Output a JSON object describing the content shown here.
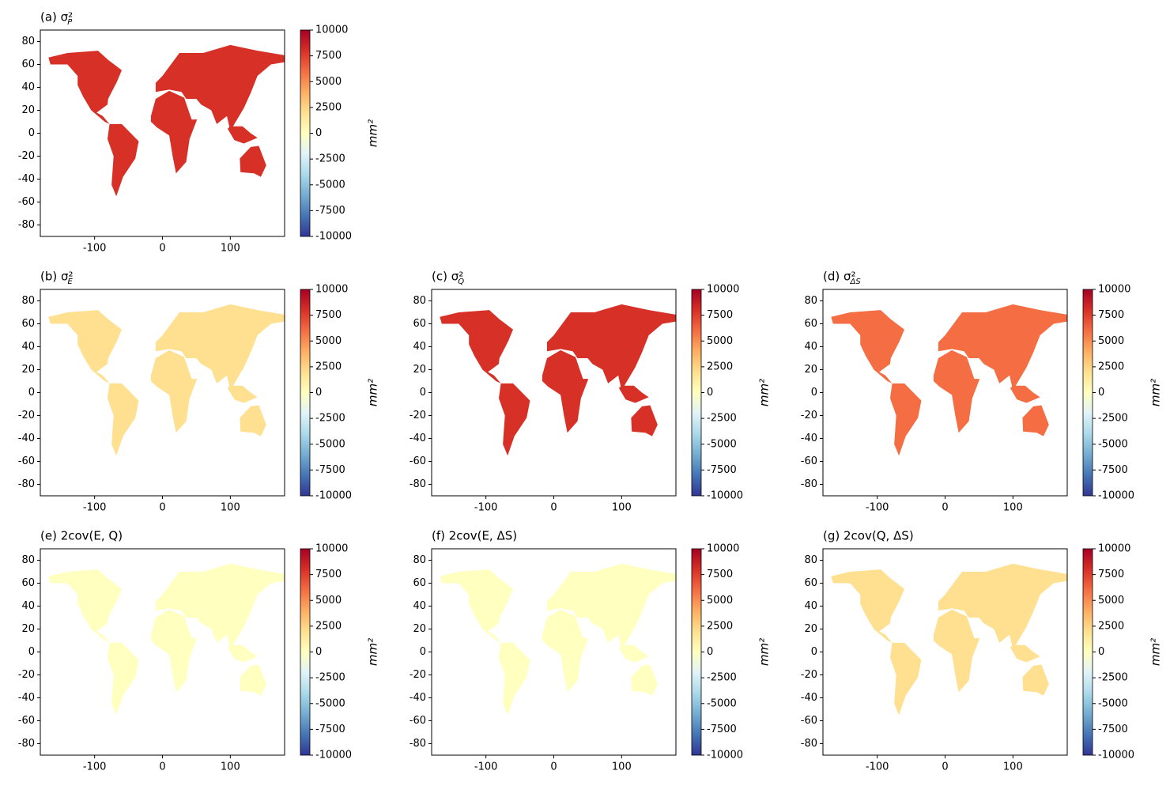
{
  "chart_data": [
    {
      "type": "heatmap",
      "title": "(a) σ²",
      "title_sub": "P",
      "xlim": [
        -180,
        180
      ],
      "xticks": [
        -100,
        0,
        100
      ],
      "ylim": [
        -90,
        90
      ],
      "yticks": [
        -80,
        -60,
        -40,
        -20,
        0,
        20,
        40,
        60,
        80
      ],
      "clim": [
        -10000,
        10000
      ],
      "cticks": [
        -10000,
        -7500,
        -5000,
        -2500,
        0,
        2500,
        5000,
        7500,
        10000
      ],
      "colorbar_label": "mm²",
      "colormap": [
        "#313695",
        "#4575b4",
        "#74add1",
        "#abd9e9",
        "#e0f3f8",
        "#ffffbf",
        "#fee090",
        "#fdae61",
        "#f46d43",
        "#d73027",
        "#a50026"
      ]
    },
    {
      "type": "heatmap",
      "title": "(b) σ²",
      "title_sub": "E",
      "xlim": [
        -180,
        180
      ],
      "xticks": [
        -100,
        0,
        100
      ],
      "ylim": [
        -90,
        90
      ],
      "yticks": [
        -80,
        -60,
        -40,
        -20,
        0,
        20,
        40,
        60,
        80
      ],
      "clim": [
        -10000,
        10000
      ],
      "cticks": [
        -10000,
        -7500,
        -5000,
        -2500,
        0,
        2500,
        5000,
        7500,
        10000
      ],
      "colorbar_label": "mm²",
      "colormap": [
        "#313695",
        "#4575b4",
        "#74add1",
        "#abd9e9",
        "#e0f3f8",
        "#ffffbf",
        "#fee090",
        "#fdae61",
        "#f46d43",
        "#d73027",
        "#a50026"
      ]
    },
    {
      "type": "heatmap",
      "title": "(c) σ²",
      "title_sub": "Q",
      "xlim": [
        -180,
        180
      ],
      "xticks": [
        -100,
        0,
        100
      ],
      "ylim": [
        -90,
        90
      ],
      "yticks": [
        -80,
        -60,
        -40,
        -20,
        0,
        20,
        40,
        60,
        80
      ],
      "clim": [
        -10000,
        10000
      ],
      "cticks": [
        -10000,
        -7500,
        -5000,
        -2500,
        0,
        2500,
        5000,
        7500,
        10000
      ],
      "colorbar_label": "mm²",
      "colormap": [
        "#313695",
        "#4575b4",
        "#74add1",
        "#abd9e9",
        "#e0f3f8",
        "#ffffbf",
        "#fee090",
        "#fdae61",
        "#f46d43",
        "#d73027",
        "#a50026"
      ]
    },
    {
      "type": "heatmap",
      "title": "(d) σ²",
      "title_sub": "ΔS",
      "xlim": [
        -180,
        180
      ],
      "xticks": [
        -100,
        0,
        100
      ],
      "ylim": [
        -90,
        90
      ],
      "yticks": [
        -80,
        -60,
        -40,
        -20,
        0,
        20,
        40,
        60,
        80
      ],
      "clim": [
        -10000,
        10000
      ],
      "cticks": [
        -10000,
        -7500,
        -5000,
        -2500,
        0,
        2500,
        5000,
        7500,
        10000
      ],
      "colorbar_label": "mm²",
      "colormap": [
        "#313695",
        "#4575b4",
        "#74add1",
        "#abd9e9",
        "#e0f3f8",
        "#ffffbf",
        "#fee090",
        "#fdae61",
        "#f46d43",
        "#d73027",
        "#a50026"
      ]
    },
    {
      "type": "heatmap",
      "title": "(e) 2cov(E, Q)",
      "xlim": [
        -180,
        180
      ],
      "xticks": [
        -100,
        0,
        100
      ],
      "ylim": [
        -90,
        90
      ],
      "yticks": [
        -80,
        -60,
        -40,
        -20,
        0,
        20,
        40,
        60,
        80
      ],
      "clim": [
        -10000,
        10000
      ],
      "cticks": [
        -10000,
        -7500,
        -5000,
        -2500,
        0,
        2500,
        5000,
        7500,
        10000
      ],
      "colorbar_label": "mm²",
      "colormap": [
        "#313695",
        "#4575b4",
        "#74add1",
        "#abd9e9",
        "#e0f3f8",
        "#ffffbf",
        "#fee090",
        "#fdae61",
        "#f46d43",
        "#d73027",
        "#a50026"
      ]
    },
    {
      "type": "heatmap",
      "title": "(f) 2cov(E, ΔS)",
      "xlim": [
        -180,
        180
      ],
      "xticks": [
        -100,
        0,
        100
      ],
      "ylim": [
        -90,
        90
      ],
      "yticks": [
        -80,
        -60,
        -40,
        -20,
        0,
        20,
        40,
        60,
        80
      ],
      "clim": [
        -10000,
        10000
      ],
      "cticks": [
        -10000,
        -7500,
        -5000,
        -2500,
        0,
        2500,
        5000,
        7500,
        10000
      ],
      "colorbar_label": "mm²",
      "colormap": [
        "#313695",
        "#4575b4",
        "#74add1",
        "#abd9e9",
        "#e0f3f8",
        "#ffffbf",
        "#fee090",
        "#fdae61",
        "#f46d43",
        "#d73027",
        "#a50026"
      ]
    },
    {
      "type": "heatmap",
      "title": "(g) 2cov(Q, ΔS)",
      "xlim": [
        -180,
        180
      ],
      "xticks": [
        -100,
        0,
        100
      ],
      "ylim": [
        -90,
        90
      ],
      "yticks": [
        -80,
        -60,
        -40,
        -20,
        0,
        20,
        40,
        60,
        80
      ],
      "clim": [
        -10000,
        10000
      ],
      "cticks": [
        -10000,
        -7500,
        -5000,
        -2500,
        0,
        2500,
        5000,
        7500,
        10000
      ],
      "colorbar_label": "mm²",
      "colormap": [
        "#313695",
        "#4575b4",
        "#74add1",
        "#abd9e9",
        "#e0f3f8",
        "#ffffbf",
        "#fee090",
        "#fdae61",
        "#f46d43",
        "#d73027",
        "#a50026"
      ]
    }
  ]
}
